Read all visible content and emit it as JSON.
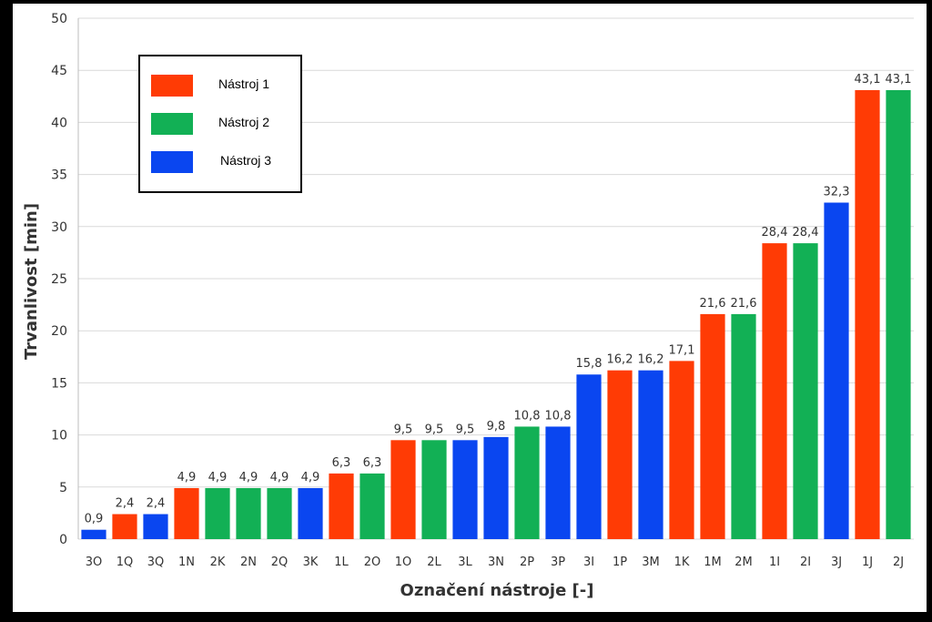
{
  "chart_data": {
    "type": "bar",
    "title": "",
    "xlabel": "Označení nástroje [-]",
    "ylabel": "Trvanlivost [min]",
    "ylim": [
      0,
      50
    ],
    "yticks": [
      0,
      5,
      10,
      15,
      20,
      25,
      30,
      35,
      40,
      45,
      50
    ],
    "grid": true,
    "legend": {
      "placement": "top-left",
      "items": [
        {
          "name": "Nástroj 1",
          "color": "#ff3b05"
        },
        {
          "name": "Nástroj 2",
          "color": "#12b055"
        },
        {
          "name": "Nástroj 3",
          "color": "#0a46f0"
        }
      ]
    },
    "categories": [
      "3O",
      "1Q",
      "3Q",
      "1N",
      "2K",
      "2N",
      "2Q",
      "3K",
      "1L",
      "2O",
      "1O",
      "2L",
      "3L",
      "3N",
      "2P",
      "3P",
      "3I",
      "1P",
      "3M",
      "1K",
      "1M",
      "2M",
      "1I",
      "2I",
      "3J",
      "1J",
      "2J"
    ],
    "values": [
      0.9,
      2.4,
      2.4,
      4.9,
      4.9,
      4.9,
      4.9,
      4.9,
      6.3,
      6.3,
      9.5,
      9.5,
      9.5,
      9.8,
      10.8,
      10.8,
      15.8,
      16.2,
      16.2,
      17.1,
      21.6,
      21.6,
      28.4,
      28.4,
      32.3,
      43.1,
      43.1
    ],
    "value_labels": [
      "0,9",
      "2,4",
      "2,4",
      "4,9",
      "4,9",
      "4,9",
      "4,9",
      "4,9",
      "6,3",
      "6,3",
      "9,5",
      "9,5",
      "9,5",
      "9,8",
      "10,8",
      "10,8",
      "15,8",
      "16,2",
      "16,2",
      "17,1",
      "21,6",
      "21,6",
      "28,4",
      "28,4",
      "32,3",
      "43,1",
      "43,1"
    ],
    "tool": [
      3,
      1,
      3,
      1,
      2,
      2,
      2,
      3,
      1,
      2,
      1,
      2,
      3,
      3,
      2,
      3,
      3,
      1,
      3,
      1,
      1,
      2,
      1,
      2,
      3,
      1,
      2
    ]
  }
}
